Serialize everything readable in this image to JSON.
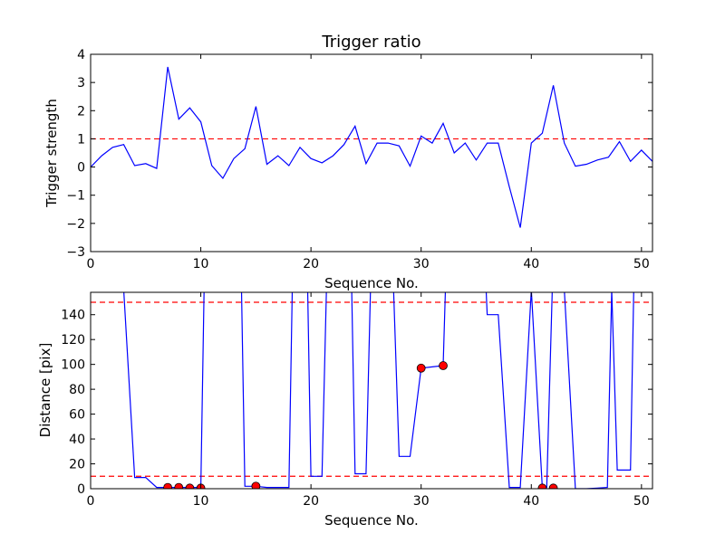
{
  "chart_data": [
    {
      "type": "line",
      "title": "Trigger ratio",
      "xlabel": "Sequence No.",
      "ylabel": "Trigger strength",
      "xlim": [
        0,
        51
      ],
      "ylim": [
        -3,
        4
      ],
      "xticks": [
        0,
        10,
        20,
        30,
        40,
        50
      ],
      "yticks": [
        -3,
        -2,
        -1,
        0,
        1,
        2,
        3,
        4
      ],
      "xtick_labels": [
        "0",
        "10",
        "20",
        "30",
        "40",
        "50"
      ],
      "ytick_labels": [
        "−3",
        "−2",
        "−1",
        "0",
        "1",
        "2",
        "3",
        "4"
      ],
      "grid": false,
      "threshold_lines": [
        {
          "y": 1.0,
          "color": "#ff0000",
          "style": "dashed"
        }
      ],
      "series": [
        {
          "color": "#0000ff",
          "x": [
            0,
            1,
            2,
            3,
            4,
            5,
            6,
            7,
            8,
            9,
            10,
            11,
            12,
            13,
            14,
            15,
            16,
            17,
            18,
            19,
            20,
            21,
            22,
            23,
            24,
            25,
            26,
            27,
            28,
            29,
            30,
            31,
            32,
            33,
            34,
            35,
            36,
            37,
            38,
            39,
            40,
            41,
            42,
            43,
            44,
            45,
            46,
            47,
            48,
            49,
            50,
            51
          ],
          "y": [
            0.0,
            0.4,
            0.7,
            0.8,
            0.05,
            0.12,
            -0.05,
            3.55,
            1.7,
            2.1,
            1.6,
            0.05,
            -0.4,
            0.3,
            0.65,
            2.15,
            0.1,
            0.4,
            0.05,
            0.7,
            0.3,
            0.15,
            0.4,
            0.8,
            1.45,
            0.12,
            0.85,
            0.85,
            0.75,
            0.03,
            1.1,
            0.85,
            1.55,
            0.5,
            0.85,
            0.25,
            0.85,
            0.85,
            -0.7,
            -2.15,
            0.85,
            1.2,
            2.9,
            0.85,
            0.03,
            0.1,
            0.25,
            0.35,
            0.9,
            0.2,
            0.6,
            0.2
          ]
        }
      ]
    },
    {
      "type": "line",
      "title": "",
      "xlabel": "Sequence No.",
      "ylabel": "Distance [pix]",
      "xlim": [
        0,
        51
      ],
      "ylim": [
        0,
        158
      ],
      "xticks": [
        0,
        10,
        20,
        30,
        40,
        50
      ],
      "yticks": [
        0,
        20,
        40,
        60,
        80,
        100,
        120,
        140
      ],
      "xtick_labels": [
        "0",
        "10",
        "20",
        "30",
        "40",
        "50"
      ],
      "ytick_labels": [
        "0",
        "20",
        "40",
        "60",
        "80",
        "100",
        "120",
        "140"
      ],
      "grid": false,
      "threshold_lines": [
        {
          "y": 150,
          "color": "#ff0000",
          "style": "dashed"
        },
        {
          "y": 10,
          "color": "#ff0000",
          "style": "dashed"
        }
      ],
      "series": [
        {
          "color": "#0000ff",
          "x": [
            3,
            4,
            5,
            6,
            7,
            8,
            9,
            10,
            10.3,
            13.7,
            14,
            15,
            16,
            17,
            18,
            18.3,
            19.7,
            20,
            21,
            21.4,
            23.7,
            24,
            25,
            25.4,
            27.5,
            28,
            29,
            30,
            31,
            32,
            32.2,
            35.9,
            36,
            37,
            38,
            39,
            40,
            41,
            41.4,
            41.9,
            42,
            43,
            44,
            45,
            46,
            46.9,
            47.3,
            47.8,
            48,
            49,
            49.3,
            51
          ],
          "y": [
            160,
            9,
            9,
            1,
            1,
            1,
            1,
            1,
            160,
            160,
            2,
            2,
            1,
            1,
            1,
            160,
            160,
            10,
            10,
            160,
            160,
            12,
            12,
            160,
            160,
            26,
            26,
            97,
            98,
            99,
            160,
            160,
            140,
            140,
            1,
            1,
            160,
            1,
            1,
            160,
            160,
            160,
            0,
            0,
            0.5,
            1,
            160,
            15,
            15,
            15,
            160,
            160
          ]
        }
      ],
      "markers": {
        "color": "#ff0000",
        "points": [
          {
            "x": 7,
            "y": 1
          },
          {
            "x": 8,
            "y": 1
          },
          {
            "x": 9,
            "y": 0.5
          },
          {
            "x": 10,
            "y": 0.5
          },
          {
            "x": 15,
            "y": 2
          },
          {
            "x": 30,
            "y": 97
          },
          {
            "x": 32,
            "y": 99
          },
          {
            "x": 41,
            "y": 0.5
          },
          {
            "x": 42,
            "y": 0.5
          }
        ]
      }
    }
  ]
}
